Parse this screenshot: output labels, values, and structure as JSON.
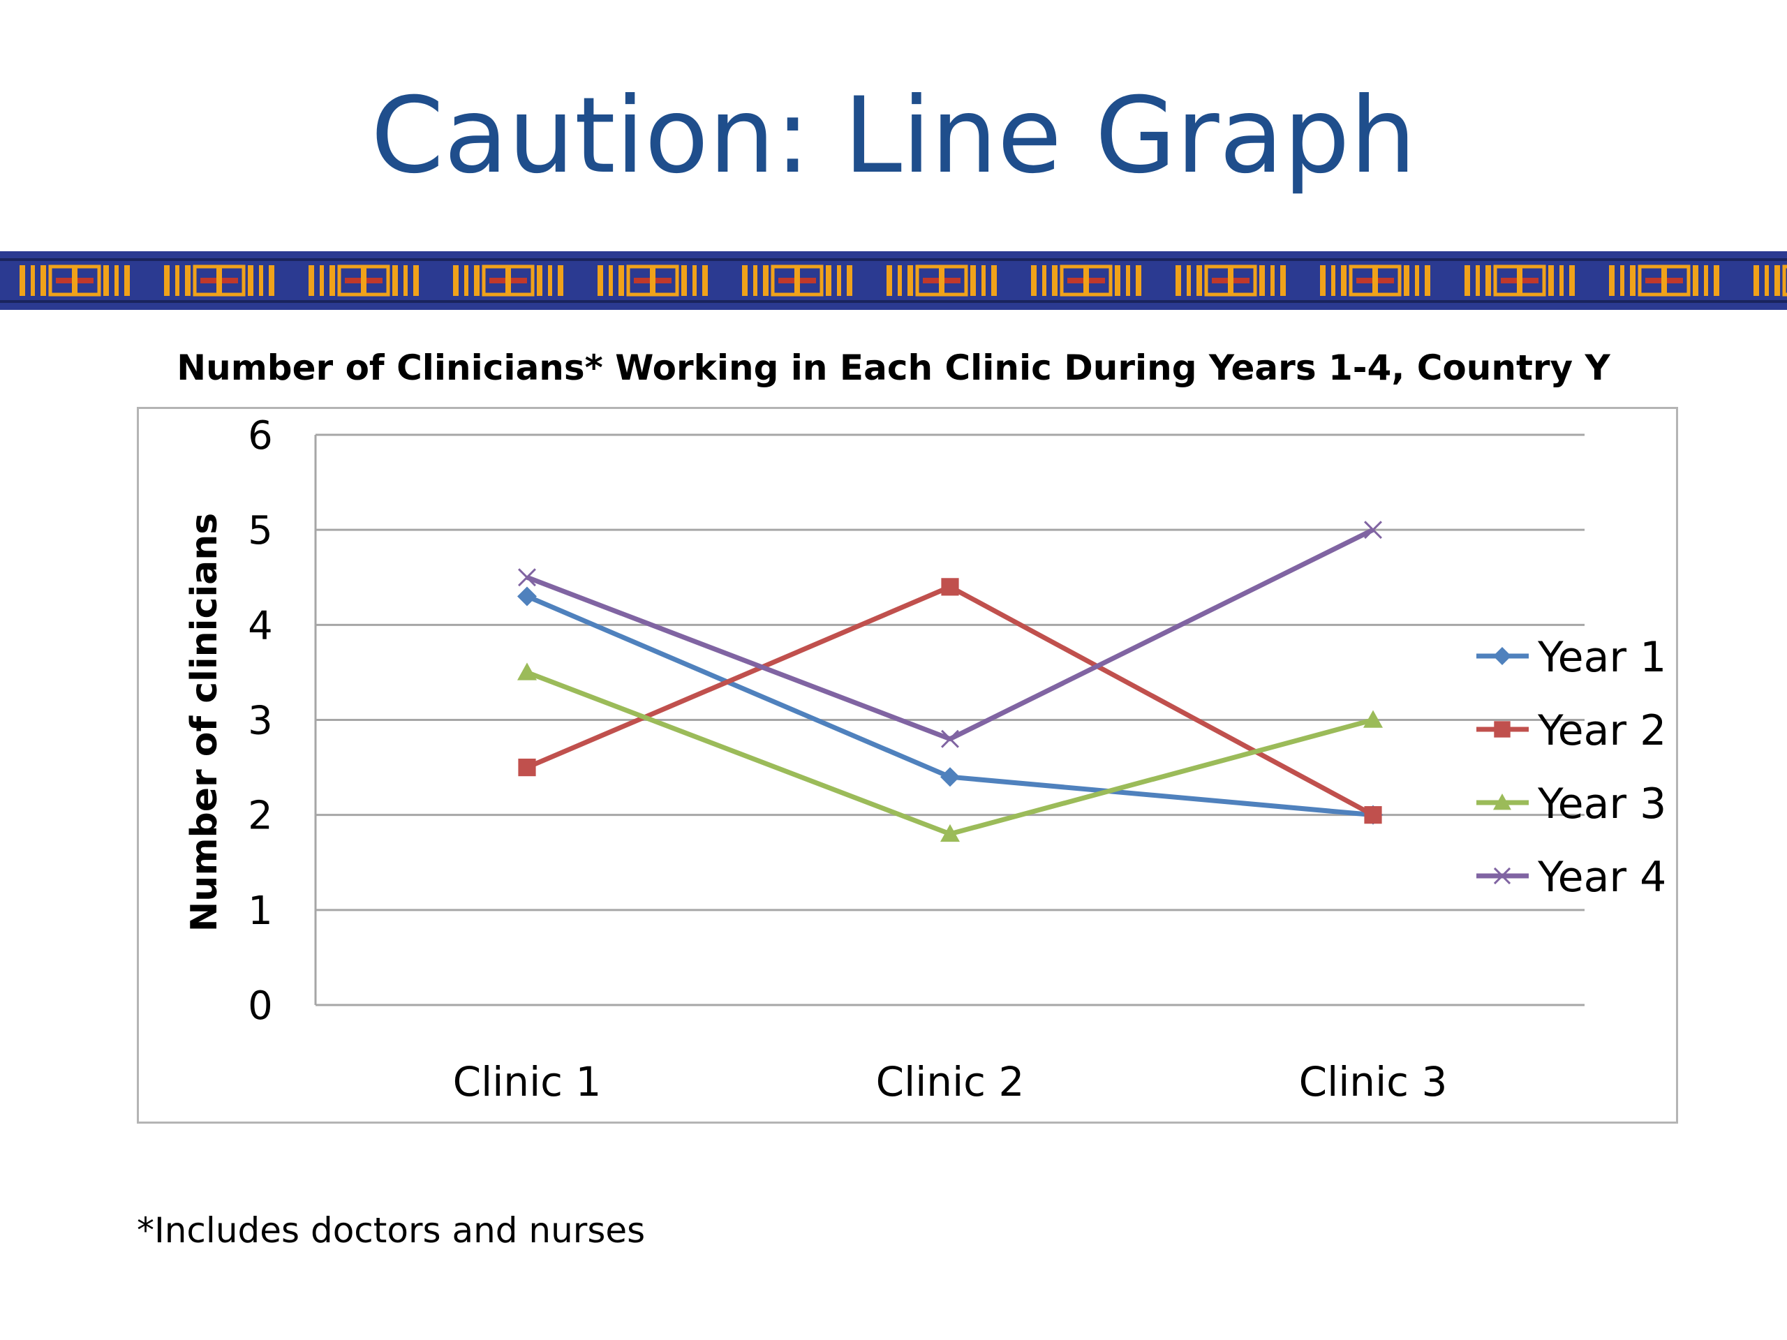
{
  "slide": {
    "title": "Caution: Line Graph",
    "footnote": "*Includes doctors and nurses"
  },
  "colors": {
    "title": "#1f4e8c",
    "banner_base": "#2b3a91",
    "banner_accent": "#f0a21a",
    "banner_red": "#c0392b",
    "grid": "#a6a6a6"
  },
  "chart_data": {
    "type": "line",
    "title": "Number of Clinicians* Working in Each Clinic During Years 1-4, Country Y",
    "xlabel": "",
    "ylabel": "Number of clinicians",
    "ylim": [
      0,
      6
    ],
    "yticks": [
      "0",
      "1",
      "2",
      "3",
      "4",
      "5",
      "6"
    ],
    "categories": [
      "Clinic 1",
      "Clinic 2",
      "Clinic 3"
    ],
    "grid": true,
    "legend_position": "right",
    "series": [
      {
        "name": "Year 1",
        "values": [
          4.3,
          2.4,
          2.0
        ],
        "color": "#4f81bd",
        "marker": "diamond"
      },
      {
        "name": "Year 2",
        "values": [
          2.5,
          4.4,
          2.0
        ],
        "color": "#c0504d",
        "marker": "square"
      },
      {
        "name": "Year 3",
        "values": [
          3.5,
          1.8,
          3.0
        ],
        "color": "#9bbb59",
        "marker": "triangle"
      },
      {
        "name": "Year 4",
        "values": [
          4.5,
          2.8,
          5.0
        ],
        "color": "#8064a2",
        "marker": "x"
      }
    ]
  }
}
